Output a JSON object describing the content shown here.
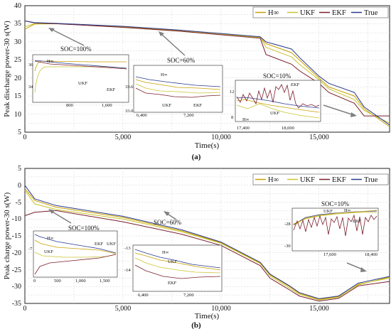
{
  "colors": {
    "Hinf": "#c8a000",
    "UKF": "#c9c431",
    "EKF": "#7a1f2e",
    "True": "#2a3a8c",
    "arrow": "#7f7f7f"
  },
  "chart_data": [
    {
      "type": "line",
      "caption": "(a)",
      "xlabel": "Time(s)",
      "ylabel": "Peak discharge power-30 s(W)",
      "xlim": [
        0,
        18600
      ],
      "ylim": [
        5,
        40
      ],
      "xticks": [
        "0",
        "5,000",
        "10,000",
        "15,000"
      ],
      "yticks": [
        "5",
        "10",
        "15",
        "20",
        "25",
        "30",
        "35",
        "40"
      ],
      "legend": [
        "H∞",
        "UKF",
        "EKF",
        "True"
      ],
      "legend_position": "top-right",
      "grid": true,
      "annotations": [
        "SOC=100%",
        "SOC=60%",
        "SOC=10%"
      ],
      "series": [
        {
          "name": "H∞",
          "x": [
            0,
            500,
            1600,
            5000,
            8000,
            12000,
            12300,
            13600,
            14000,
            15000,
            15500,
            16800,
            17300,
            18600
          ],
          "y": [
            33.5,
            34.9,
            35.0,
            34.2,
            33.0,
            31.2,
            29.5,
            27.0,
            25.0,
            20.0,
            17.5,
            15.0,
            11.5,
            6.5
          ]
        },
        {
          "name": "UKF",
          "x": [
            0,
            500,
            1600,
            5000,
            8000,
            12000,
            12300,
            13600,
            14000,
            15000,
            15500,
            16800,
            17300,
            18600
          ],
          "y": [
            34.2,
            35.0,
            35.1,
            34.0,
            32.9,
            31.3,
            28.5,
            25.8,
            23.8,
            19.5,
            17.0,
            14.0,
            11.0,
            7.5
          ]
        },
        {
          "name": "EKF",
          "x": [
            0,
            500,
            1600,
            5000,
            8000,
            12000,
            12300,
            13600,
            14000,
            15000,
            15500,
            16800,
            17300,
            18600
          ],
          "y": [
            35.8,
            35.2,
            35.0,
            34.0,
            32.9,
            31.0,
            26.5,
            23.8,
            22.0,
            18.5,
            16.0,
            13.0,
            9.5,
            9.5
          ]
        },
        {
          "name": "True",
          "x": [
            0,
            500,
            1600,
            5000,
            8000,
            12000,
            12300,
            13600,
            14000,
            15000,
            15500,
            16800,
            17300,
            18600
          ],
          "y": [
            35.8,
            35.3,
            35.1,
            34.3,
            33.2,
            31.4,
            30.0,
            28.0,
            25.7,
            20.5,
            18.5,
            16.0,
            12.0,
            7.0
          ]
        }
      ],
      "insets": [
        {
          "label": "SOC=100%",
          "xticks": [
            "800",
            "1,600"
          ],
          "yticks": [
            "34",
            "36"
          ],
          "labels": [
            "H∞",
            "UKF",
            "EKF"
          ]
        },
        {
          "label": "SOC=60%",
          "xticks": [
            "6,400",
            "7,200"
          ],
          "yticks": [
            "33.0",
            "33.6"
          ],
          "labels": [
            "H∞",
            "UKF",
            "EKF"
          ]
        },
        {
          "label": "SOC=10%",
          "xticks": [
            "17,400",
            "18,000"
          ],
          "yticks": [
            "8",
            "12"
          ],
          "labels": [
            "H∞",
            "UKF",
            "EKF"
          ]
        }
      ]
    },
    {
      "type": "line",
      "caption": "(b)",
      "xlabel": "Time(s)",
      "ylabel": "Peak charge power-30 s(W)",
      "xlim": [
        0,
        18600
      ],
      "ylim": [
        -35,
        5
      ],
      "xticks": [
        "0",
        "5,000",
        "10,000",
        "15,000"
      ],
      "yticks": [
        "5",
        "0",
        "-5",
        "-10",
        "-15",
        "-20",
        "-25",
        "-30",
        "-35"
      ],
      "legend": [
        "H∞",
        "UKF",
        "EKF",
        "True"
      ],
      "legend_position": "top-right",
      "grid": true,
      "annotations": [
        "SOC=100%",
        "SOC=60%",
        "SOC=10%"
      ],
      "series": [
        {
          "name": "H∞",
          "x": [
            0,
            500,
            1600,
            5000,
            8000,
            10000,
            12000,
            12500,
            13500,
            14000,
            15000,
            16000,
            17000,
            18600
          ],
          "y": [
            -1.0,
            -4.5,
            -6.5,
            -9.5,
            -13.5,
            -17.0,
            -23.0,
            -26.5,
            -30.0,
            -32.0,
            -33.8,
            -33.0,
            -29.5,
            -27.2
          ]
        },
        {
          "name": "UKF",
          "x": [
            0,
            500,
            1600,
            5000,
            8000,
            10000,
            12000,
            12500,
            13500,
            14000,
            15000,
            16000,
            17000,
            18600
          ],
          "y": [
            -1.5,
            -5.5,
            -7.2,
            -10.0,
            -13.8,
            -17.2,
            -23.2,
            -26.8,
            -30.5,
            -32.3,
            -34.0,
            -33.2,
            -29.3,
            -27.5
          ]
        },
        {
          "name": "EKF",
          "x": [
            0,
            500,
            1600,
            5000,
            8000,
            10000,
            12000,
            12500,
            13500,
            14000,
            15000,
            16000,
            17000,
            18600
          ],
          "y": [
            -9.0,
            -8.0,
            -7.5,
            -10.8,
            -14.5,
            -17.8,
            -23.8,
            -27.5,
            -31.0,
            -32.8,
            -34.3,
            -33.5,
            -29.8,
            -28.5
          ]
        },
        {
          "name": "True",
          "x": [
            0,
            500,
            1600,
            5000,
            8000,
            10000,
            12000,
            12500,
            13500,
            14000,
            15000,
            16000,
            17000,
            18600
          ],
          "y": [
            0.0,
            -4.0,
            -6.0,
            -9.2,
            -13.2,
            -16.8,
            -22.8,
            -26.3,
            -29.8,
            -31.8,
            -33.6,
            -32.8,
            -29.0,
            -27.0
          ]
        }
      ],
      "insets": [
        {
          "label": "SOC=100%",
          "xticks": [
            "0",
            "500",
            "1,000",
            "1,500"
          ],
          "yticks": [
            "-7"
          ],
          "labels": [
            "H∞",
            "UKF",
            "EKF",
            "UKF"
          ]
        },
        {
          "label": "SOC=60%",
          "xticks": [
            "6,400",
            "7,200"
          ],
          "yticks": [
            "-13",
            "-14"
          ],
          "labels": [
            "H∞",
            "UKF",
            "EKF"
          ]
        },
        {
          "label": "SOC=10%",
          "xticks": [
            "17,600",
            "18,400"
          ],
          "yticks": [
            "-28",
            "-30"
          ],
          "labels": [
            "UKF",
            "H∞",
            "EKF"
          ]
        }
      ]
    }
  ]
}
